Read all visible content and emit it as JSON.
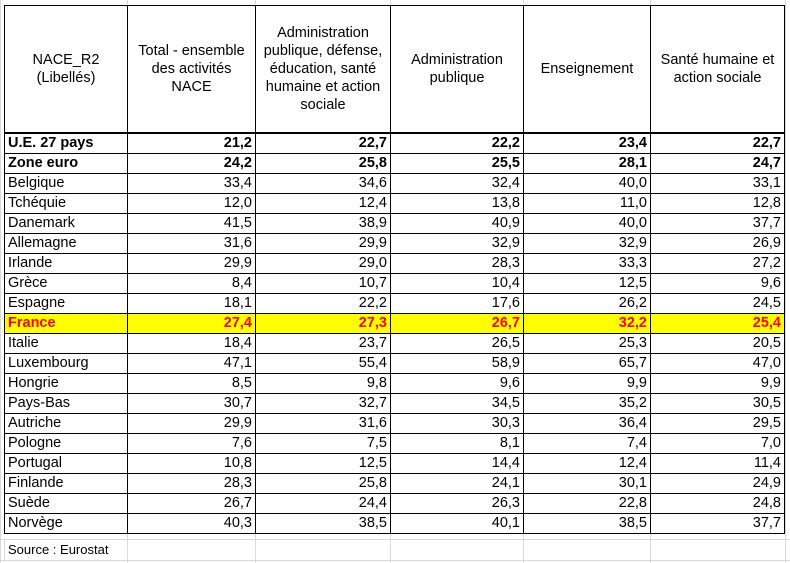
{
  "table": {
    "headers": [
      "NACE_R2 (Libellés)",
      "Total - ensemble des activités NACE",
      "Administration publique, défense, éducation, santé humaine et action sociale",
      "Administration publique",
      "Enseignement",
      "Santé humaine et action sociale"
    ],
    "rows": [
      {
        "label": "U.E. 27 pays",
        "values": [
          "21,2",
          "22,7",
          "22,2",
          "23,4",
          "22,7"
        ]
      },
      {
        "label": "Zone euro",
        "values": [
          "24,2",
          "25,8",
          "25,5",
          "28,1",
          "24,7"
        ]
      },
      {
        "label": "Belgique",
        "values": [
          "33,4",
          "34,6",
          "32,4",
          "40,0",
          "33,1"
        ]
      },
      {
        "label": "Tchéquie",
        "values": [
          "12,0",
          "12,4",
          "13,8",
          "11,0",
          "12,8"
        ]
      },
      {
        "label": "Danemark",
        "values": [
          "41,5",
          "38,9",
          "40,9",
          "40,0",
          "37,7"
        ]
      },
      {
        "label": "Allemagne",
        "values": [
          "31,6",
          "29,9",
          "32,9",
          "32,9",
          "26,9"
        ]
      },
      {
        "label": "Irlande",
        "values": [
          "29,9",
          "29,0",
          "28,3",
          "33,3",
          "27,2"
        ]
      },
      {
        "label": "Grèce",
        "values": [
          "8,4",
          "10,7",
          "10,4",
          "12,5",
          "9,6"
        ]
      },
      {
        "label": "Espagne",
        "values": [
          "18,1",
          "22,2",
          "17,6",
          "26,2",
          "24,5"
        ]
      },
      {
        "label": "France",
        "values": [
          "27,4",
          "27,3",
          "26,7",
          "32,2",
          "25,4"
        ]
      },
      {
        "label": "Italie",
        "values": [
          "18,4",
          "23,7",
          "26,5",
          "25,3",
          "20,5"
        ]
      },
      {
        "label": "Luxembourg",
        "values": [
          "47,1",
          "55,4",
          "58,9",
          "65,7",
          "47,0"
        ]
      },
      {
        "label": "Hongrie",
        "values": [
          "8,5",
          "9,8",
          "9,6",
          "9,9",
          "9,9"
        ]
      },
      {
        "label": "Pays-Bas",
        "values": [
          "30,7",
          "32,7",
          "34,5",
          "35,2",
          "30,5"
        ]
      },
      {
        "label": "Autriche",
        "values": [
          "29,9",
          "31,6",
          "30,3",
          "36,4",
          "29,5"
        ]
      },
      {
        "label": "Pologne",
        "values": [
          "7,6",
          "7,5",
          "8,1",
          "7,4",
          "7,0"
        ]
      },
      {
        "label": "Portugal",
        "values": [
          "10,8",
          "12,5",
          "14,4",
          "12,4",
          "11,4"
        ]
      },
      {
        "label": "Finlande",
        "values": [
          "28,3",
          "25,8",
          "24,1",
          "30,1",
          "24,9"
        ]
      },
      {
        "label": "Suède",
        "values": [
          "26,7",
          "24,4",
          "26,3",
          "22,8",
          "24,8"
        ]
      },
      {
        "label": "Norvège",
        "values": [
          "40,3",
          "38,5",
          "40,1",
          "38,5",
          "37,7"
        ]
      }
    ]
  },
  "styles": {
    "highlight_row_label": "France",
    "highlight_background": "#ffff00",
    "highlight_text_color": "#ff0000",
    "bold_row_labels": [
      "U.E. 27 pays",
      "Zone euro"
    ]
  },
  "footer": {
    "source": "Source : Eurostat"
  }
}
